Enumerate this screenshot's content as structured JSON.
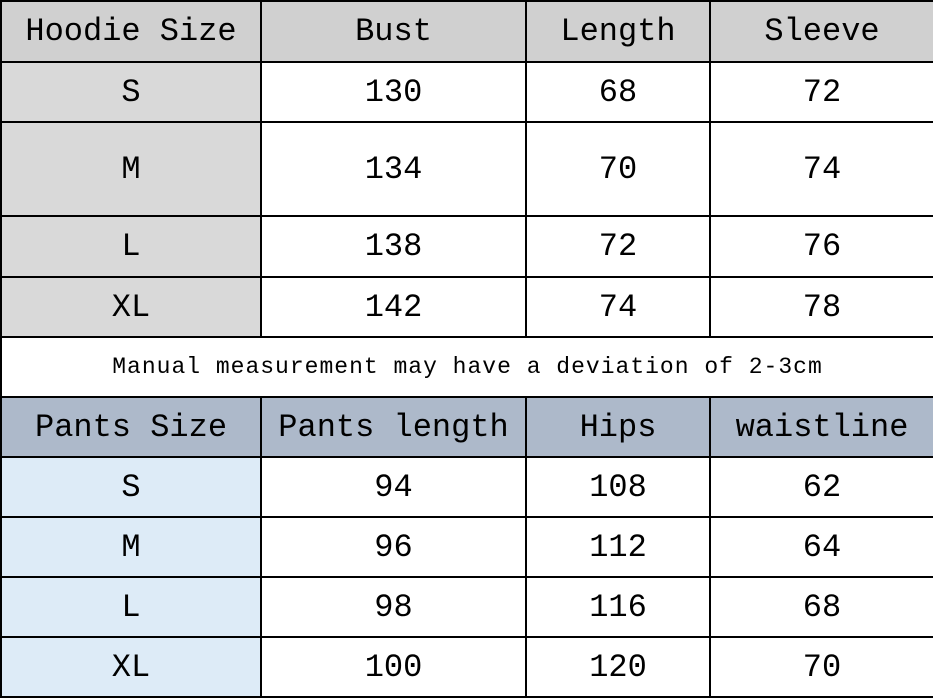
{
  "hoodie": {
    "headers": [
      "Hoodie Size",
      "Bust",
      "Length",
      "Sleeve"
    ],
    "rows": [
      [
        "S",
        "130",
        "68",
        "72"
      ],
      [
        "M",
        "134",
        "70",
        "74"
      ],
      [
        "L",
        "138",
        "72",
        "76"
      ],
      [
        "XL",
        "142",
        "74",
        "78"
      ]
    ]
  },
  "note": "Manual measurement may have a deviation of 2-3cm",
  "pants": {
    "headers": [
      "Pants Size",
      "Pants length",
      "Hips",
      "waistline"
    ],
    "rows": [
      [
        "S",
        "94",
        "108",
        "62"
      ],
      [
        "M",
        "96",
        "112",
        "64"
      ],
      [
        "L",
        "98",
        "116",
        "68"
      ],
      [
        "XL",
        "100",
        "120",
        "70"
      ]
    ]
  },
  "colors": {
    "hoodie_header": "#d0d0d0",
    "hoodie_size_col": "#d9d9d9",
    "pants_header": "#adb9ca",
    "pants_size_col": "#ddebf7"
  }
}
